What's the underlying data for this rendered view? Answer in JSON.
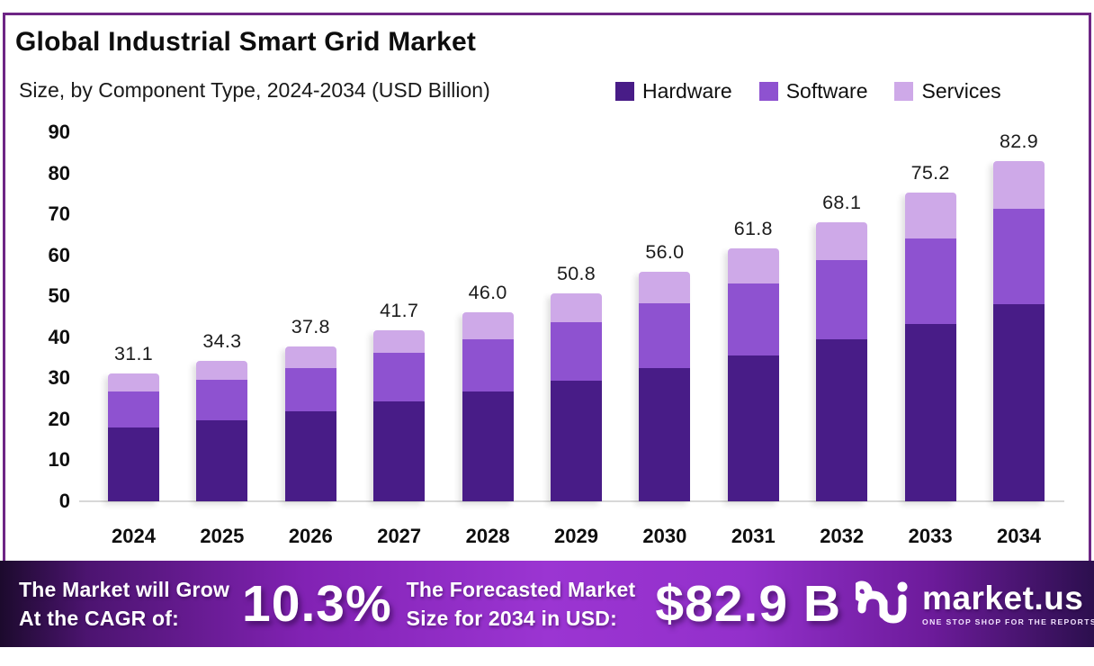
{
  "header": {
    "title": "Global Industrial Smart Grid Market",
    "subtitle": "Size, by Component Type, 2024-2034 (USD Billion)"
  },
  "legend": [
    {
      "label": "Hardware",
      "color": "#481c87"
    },
    {
      "label": "Software",
      "color": "#8e52d0"
    },
    {
      "label": "Services",
      "color": "#cea9e8"
    }
  ],
  "chart_data": {
    "type": "bar",
    "stacked": true,
    "title": "Global Industrial Smart Grid Market Size, by Component Type, 2024-2034 (USD Billion)",
    "categories": [
      "2024",
      "2025",
      "2026",
      "2027",
      "2028",
      "2029",
      "2030",
      "2031",
      "2032",
      "2033",
      "2034"
    ],
    "series": [
      {
        "name": "Hardware",
        "color": "#481c87",
        "values": [
          17.9,
          19.7,
          21.9,
          24.3,
          26.7,
          29.4,
          32.4,
          35.6,
          39.5,
          43.3,
          48.0
        ]
      },
      {
        "name": "Software",
        "color": "#8e52d0",
        "values": [
          8.8,
          10.0,
          10.6,
          12.0,
          12.9,
          14.3,
          15.9,
          17.5,
          19.3,
          20.9,
          23.4
        ]
      },
      {
        "name": "Services",
        "color": "#cea9e8",
        "values": [
          4.4,
          4.6,
          5.3,
          5.4,
          6.4,
          7.1,
          7.7,
          8.7,
          9.3,
          11.0,
          11.5
        ]
      }
    ],
    "totals": [
      31.1,
      34.3,
      37.8,
      41.7,
      46.0,
      50.8,
      56.0,
      61.8,
      68.1,
      75.2,
      82.9
    ],
    "total_labels": [
      "31.1",
      "34.3",
      "37.8",
      "41.7",
      "46.0",
      "50.8",
      "56.0",
      "61.8",
      "68.1",
      "75.2",
      "82.9"
    ],
    "xlabel": "",
    "ylabel": "",
    "ylim": [
      0,
      90
    ],
    "ytick_step": 10,
    "grid": false,
    "legend_position": "top-right"
  },
  "banner": {
    "cagr_label_line1": "The Market will Grow",
    "cagr_label_line2": "At the CAGR of:",
    "cagr_value": "10.3%",
    "forecast_label_line1": "The Forecasted Market",
    "forecast_label_line2": "Size for 2034 in USD:",
    "forecast_value": "$82.9 B",
    "brand": {
      "name": "market.us",
      "tagline": "ONE STOP SHOP FOR THE REPORTS"
    }
  },
  "colors": {
    "frame_border": "#6e2585",
    "hardware": "#481c87",
    "software": "#8e52d0",
    "services": "#cea9e8",
    "banner_mid": "#9b35d2",
    "banner_edge_left": "#1c0a2d",
    "banner_edge_right": "#2c0f4e",
    "axis_line": "#d8d8d8",
    "text": "#0d0d0d",
    "banner_text": "#ffffff"
  }
}
